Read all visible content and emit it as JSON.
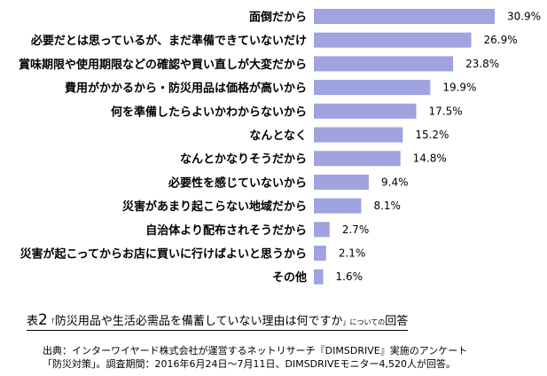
{
  "chart_data": {
    "type": "bar",
    "orientation": "horizontal",
    "bar_color": "#9fa3df",
    "categories": [
      "面倒だから",
      "必要だとは思っているが、まだ準備できていないだけ",
      "賞味期限や使用期限などの確認や買い直しが大変だから",
      "費用がかかるから・防災用品は価格が高いから",
      "何を準備したらよいかわからないから",
      "なんとなく",
      "なんとかなりそうだから",
      "必要性を感じていないから",
      "災害があまり起こらない地域だから",
      "自治体より配布されそうだから",
      "災害が起こってからお店に買いに行けばよいと思うから",
      "その他"
    ],
    "values": [
      30.9,
      26.9,
      23.8,
      19.9,
      17.5,
      15.2,
      14.8,
      9.4,
      8.1,
      2.7,
      2.1,
      1.6
    ],
    "value_labels": [
      "30.9%",
      "26.9%",
      "23.8%",
      "19.9%",
      "17.5%",
      "15.2%",
      "14.8%",
      "9.4%",
      "8.1%",
      "2.7%",
      "2.1%",
      "1.6%"
    ],
    "xlim": [
      0,
      32
    ],
    "grid": false,
    "legend": "none"
  },
  "caption": {
    "prefix": "表",
    "number": "2",
    "open_quote": "「",
    "title": "防災用品や生活必需品を備蓄していない理由は何ですか",
    "close_quote": "」",
    "about": "についての",
    "suffix": "回答"
  },
  "source": {
    "line1": "出典：インターワイヤード株式会社が運営するネットリサーチ『DIMSDRIVE』実施のアンケート",
    "line2": "「防災対策」。調査期間：2016年6月24日～7月11日、DIMSDRIVEモニター4,520人が回答。"
  }
}
